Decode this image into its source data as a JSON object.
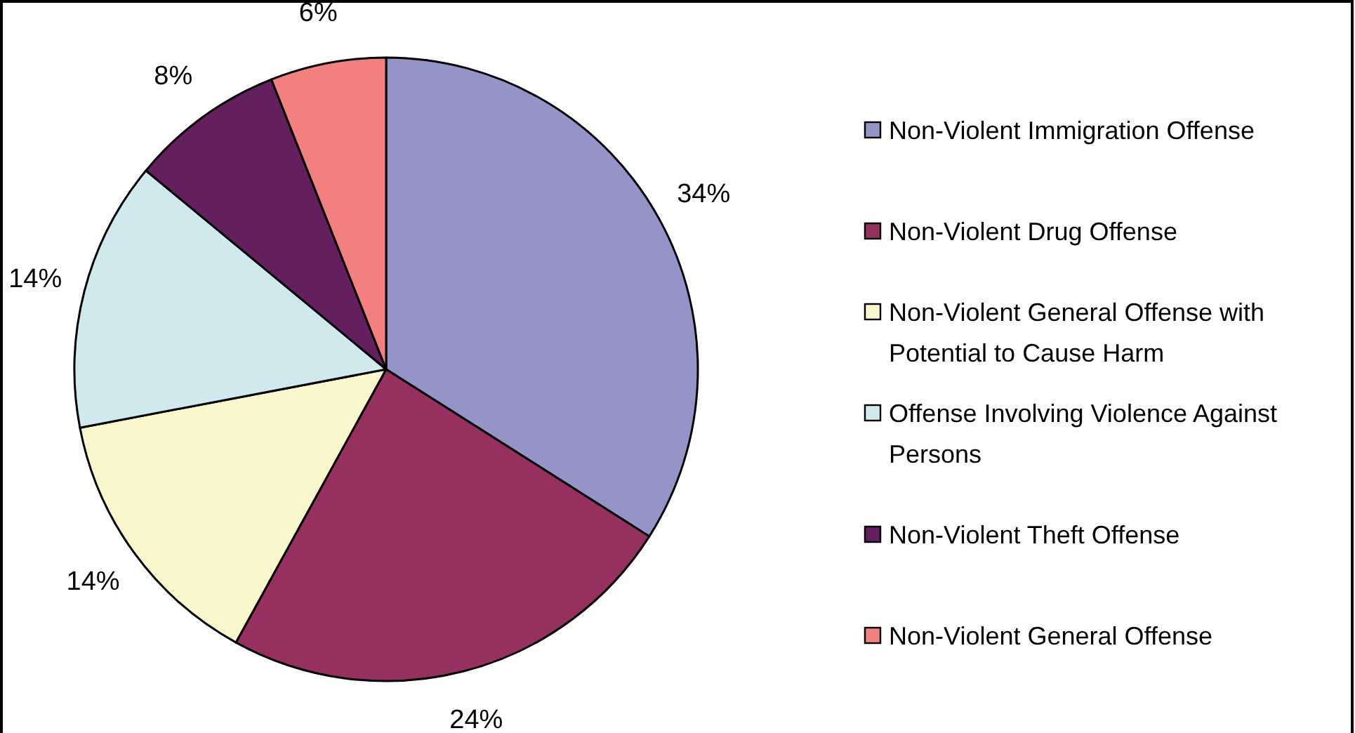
{
  "chart_data": {
    "type": "pie",
    "categories": [
      "Non-Violent Immigration Offense",
      "Non-Violent Drug Offense",
      "Non-Violent General Offense with Potential to Cause Harm",
      "Offense Involving Violence Against Persons",
      "Non-Violent Theft Offense",
      "Non-Violent General Offense"
    ],
    "values": [
      34,
      24,
      14,
      14,
      8,
      6
    ],
    "colors": [
      "#9494c8",
      "#953060",
      "#fbf7cc",
      "#cfe9ef",
      "#631f5e",
      "#f47f7f"
    ],
    "value_labels": [
      "34%",
      "24%",
      "14%",
      "14%",
      "8%",
      "6%"
    ],
    "legend": "right"
  }
}
